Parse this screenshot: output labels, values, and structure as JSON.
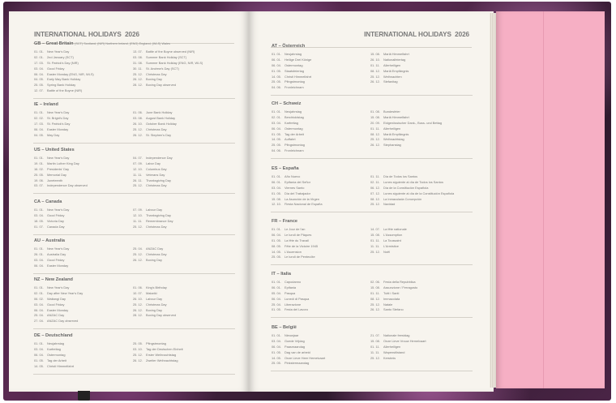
{
  "header": {
    "title": "INTERNATIONAL HOLIDAYS",
    "year": "2026"
  },
  "left_page": [
    {
      "code": "GB",
      "name": "Great Britain",
      "note": "(SCT) Scotland, (NIR) Northern Ireland, (ENG) England, (WLS) Wales",
      "col1": [
        [
          "01. 01.",
          "New Year's Day"
        ],
        [
          "02. 01.",
          "2nd January (SCT)"
        ],
        [
          "17. 03.",
          "St. Patrick's Day (NIR)"
        ],
        [
          "03. 04.",
          "Good Friday"
        ],
        [
          "06. 04.",
          "Easter Monday (ENG, NIR, WLS)"
        ],
        [
          "04. 05.",
          "Early May Bank Holiday"
        ],
        [
          "25. 05.",
          "Spring Bank Holiday"
        ],
        [
          "12. 07.",
          "Battle of the Boyne (NIR)"
        ]
      ],
      "col2": [
        [
          "13. 07.",
          "Battle of the Boyne observed (NIR)"
        ],
        [
          "03. 08.",
          "Summer Bank Holiday (SCT)"
        ],
        [
          "31. 08.",
          "Summer Bank Holiday (ENG, NIR, WLS)"
        ],
        [
          "30. 11.",
          "St. Andrew's Day (SCT)"
        ],
        [
          "25. 12.",
          "Christmas Day"
        ],
        [
          "26. 12.",
          "Boxing Day"
        ],
        [
          "28. 12.",
          "Boxing Day observed"
        ]
      ]
    },
    {
      "code": "IE",
      "name": "Ireland",
      "col1": [
        [
          "01. 01.",
          "New Year's Day"
        ],
        [
          "02. 02.",
          "St. Brigid's Day"
        ],
        [
          "17. 03.",
          "St. Patrick's Day"
        ],
        [
          "06. 04.",
          "Easter Monday"
        ],
        [
          "04. 05.",
          "May Day"
        ]
      ],
      "col2": [
        [
          "01. 06.",
          "June Bank Holiday"
        ],
        [
          "03. 08.",
          "August Bank Holiday"
        ],
        [
          "26. 10.",
          "October Bank Holiday"
        ],
        [
          "25. 12.",
          "Christmas Day"
        ],
        [
          "26. 12.",
          "St. Stephen's Day"
        ]
      ]
    },
    {
      "code": "US",
      "name": "United States",
      "col1": [
        [
          "01. 01.",
          "New Year's Day"
        ],
        [
          "19. 01.",
          "Martin Luther King Day"
        ],
        [
          "16. 02.",
          "Presidents' Day"
        ],
        [
          "25. 05.",
          "Memorial Day"
        ],
        [
          "19. 06.",
          "Juneteenth"
        ],
        [
          "03. 07.",
          "Independence Day observed"
        ]
      ],
      "col2": [
        [
          "04. 07.",
          "Independence Day"
        ],
        [
          "07. 09.",
          "Labor Day"
        ],
        [
          "12. 10.",
          "Columbus Day"
        ],
        [
          "11. 11.",
          "Veterans Day"
        ],
        [
          "26. 11.",
          "Thanksgiving Day"
        ],
        [
          "25. 12.",
          "Christmas Day"
        ]
      ]
    },
    {
      "code": "CA",
      "name": "Canada",
      "col1": [
        [
          "01. 01.",
          "New Year's Day"
        ],
        [
          "03. 04.",
          "Good Friday"
        ],
        [
          "18. 05.",
          "Victoria Day"
        ],
        [
          "01. 07.",
          "Canada Day"
        ]
      ],
      "col2": [
        [
          "07. 09.",
          "Labour Day"
        ],
        [
          "12. 10.",
          "Thanksgiving Day"
        ],
        [
          "11. 11.",
          "Remembrance Day"
        ],
        [
          "25. 12.",
          "Christmas Day"
        ]
      ]
    },
    {
      "code": "AU",
      "name": "Australia",
      "col1": [
        [
          "01. 01.",
          "New Year's Day"
        ],
        [
          "26. 01.",
          "Australia Day"
        ],
        [
          "03. 04.",
          "Good Friday"
        ],
        [
          "06. 04.",
          "Easter Monday"
        ]
      ],
      "col2": [
        [
          "25. 04.",
          "ANZAC Day"
        ],
        [
          "25. 12.",
          "Christmas Day"
        ],
        [
          "26. 12.",
          "Boxing Day"
        ]
      ]
    },
    {
      "code": "NZ",
      "name": "New Zealand",
      "col1": [
        [
          "01. 01.",
          "New Year's Day"
        ],
        [
          "02. 01.",
          "Day after New Year's Day"
        ],
        [
          "06. 02.",
          "Waitangi Day"
        ],
        [
          "03. 04.",
          "Good Friday"
        ],
        [
          "06. 04.",
          "Easter Monday"
        ],
        [
          "25. 04.",
          "ANZAC Day"
        ],
        [
          "27. 04.",
          "ANZAC Day observed"
        ]
      ],
      "col2": [
        [
          "01. 06.",
          "King's Birthday"
        ],
        [
          "10. 07.",
          "Matariki"
        ],
        [
          "26. 10.",
          "Labour Day"
        ],
        [
          "25. 12.",
          "Christmas Day"
        ],
        [
          "26. 12.",
          "Boxing Day"
        ],
        [
          "28. 12.",
          "Boxing Day observed"
        ]
      ]
    },
    {
      "code": "DE",
      "name": "Deutschland",
      "col1": [
        [
          "01. 01.",
          "Neujahrstag"
        ],
        [
          "03. 04.",
          "Karfreitag"
        ],
        [
          "06. 04.",
          "Ostermontag"
        ],
        [
          "01. 05.",
          "Tag der Arbeit"
        ],
        [
          "14. 05.",
          "Christi Himmelfahrt"
        ]
      ],
      "col2": [
        [
          "25. 05.",
          "Pfingstmontag"
        ],
        [
          "03. 10.",
          "Tag der Deutschen Einheit"
        ],
        [
          "25. 12.",
          "Erster Weihnachtstag"
        ],
        [
          "26. 12.",
          "Zweiter Weihnachtstag"
        ]
      ]
    }
  ],
  "right_page": [
    {
      "code": "AT",
      "name": "Österreich",
      "col1": [
        [
          "01. 01.",
          "Neujahrstag"
        ],
        [
          "06. 01.",
          "Heilige Drei Könige"
        ],
        [
          "06. 04.",
          "Ostermontag"
        ],
        [
          "01. 05.",
          "Staatsfeiertag"
        ],
        [
          "14. 05.",
          "Christi Himmelfahrt"
        ],
        [
          "25. 05.",
          "Pfingstmontag"
        ],
        [
          "04. 06.",
          "Fronleichnam"
        ]
      ],
      "col2": [
        [
          "15. 08.",
          "Mariä Himmelfahrt"
        ],
        [
          "26. 10.",
          "Nationalfeiertag"
        ],
        [
          "01. 11.",
          "Allerheiligen"
        ],
        [
          "08. 12.",
          "Mariä Empfängnis"
        ],
        [
          "25. 12.",
          "Weihnachten"
        ],
        [
          "26. 12.",
          "Stefanitag"
        ]
      ]
    },
    {
      "code": "CH",
      "name": "Schweiz",
      "col1": [
        [
          "01. 01.",
          "Neujahrstag"
        ],
        [
          "02. 01.",
          "Berchtoldstag"
        ],
        [
          "03. 04.",
          "Karfreitag"
        ],
        [
          "06. 04.",
          "Ostermontag"
        ],
        [
          "01. 05.",
          "Tag der Arbeit"
        ],
        [
          "14. 05.",
          "Auffahrt"
        ],
        [
          "25. 05.",
          "Pfingstmontag"
        ],
        [
          "04. 06.",
          "Fronleichnam"
        ]
      ],
      "col2": [
        [
          "01. 08.",
          "Bundesfeier"
        ],
        [
          "15. 08.",
          "Mariä Himmelfahrt"
        ],
        [
          "20. 09.",
          "Eidgenössischer Dank-, Buss- und Bettag"
        ],
        [
          "01. 11.",
          "Allerheiligen"
        ],
        [
          "08. 12.",
          "Mariä Empfängnis"
        ],
        [
          "25. 12.",
          "Weihnachtstag"
        ],
        [
          "26. 12.",
          "Stephanstag"
        ]
      ]
    },
    {
      "code": "ES",
      "name": "España",
      "col1": [
        [
          "01. 01.",
          "Año Nuevo"
        ],
        [
          "06. 01.",
          "Epifanía del Señor"
        ],
        [
          "03. 04.",
          "Viernes Santo"
        ],
        [
          "01. 05.",
          "Día del Trabajador"
        ],
        [
          "15. 08.",
          "La Asunción de la Virgen"
        ],
        [
          "12. 10.",
          "Fiesta Nacional de España"
        ]
      ],
      "col2": [
        [
          "01. 11.",
          "Día de Todos los Santos"
        ],
        [
          "02. 11.",
          "Lunes siguiente al día de Todos los Santos"
        ],
        [
          "06. 12.",
          "Día de la Constitución Española"
        ],
        [
          "07. 12.",
          "Lunes siguiente al día de la Constitución Española"
        ],
        [
          "08. 12.",
          "La Inmaculada Concepción"
        ],
        [
          "25. 12.",
          "Navidad"
        ]
      ]
    },
    {
      "code": "FR",
      "name": "France",
      "col1": [
        [
          "01. 01.",
          "Le Jour de l'an"
        ],
        [
          "06. 04.",
          "Le lundi de Pâques"
        ],
        [
          "01. 05.",
          "La fête du Travail"
        ],
        [
          "08. 05.",
          "Fête de la Victoire 1945"
        ],
        [
          "14. 05.",
          "L'Ascension"
        ],
        [
          "25. 05.",
          "Le lundi de Pentecôte"
        ]
      ],
      "col2": [
        [
          "14. 07.",
          "La fête nationale"
        ],
        [
          "15. 08.",
          "L'Assomption"
        ],
        [
          "01. 11.",
          "La Toussaint"
        ],
        [
          "11. 11.",
          "L'Armistice"
        ],
        [
          "25. 12.",
          "Noël"
        ]
      ]
    },
    {
      "code": "IT",
      "name": "Italia",
      "col1": [
        [
          "01. 01.",
          "Capodanno"
        ],
        [
          "06. 01.",
          "Epifania"
        ],
        [
          "05. 04.",
          "Pasqua"
        ],
        [
          "06. 04.",
          "Lunedì di Pasqua"
        ],
        [
          "25. 04.",
          "Liberazione"
        ],
        [
          "01. 05.",
          "Festa del Lavoro"
        ]
      ],
      "col2": [
        [
          "02. 06.",
          "Festa della Repubblica"
        ],
        [
          "15. 08.",
          "Assunzione / Ferragosto"
        ],
        [
          "01. 11.",
          "Tutti i Santi"
        ],
        [
          "08. 12.",
          "Immacolata"
        ],
        [
          "25. 12.",
          "Natale"
        ],
        [
          "26. 12.",
          "Santo Stefano"
        ]
      ]
    },
    {
      "code": "BE",
      "name": "België",
      "col1": [
        [
          "01. 01.",
          "Nieuwjaar"
        ],
        [
          "03. 04.",
          "Goede Vrijdag"
        ],
        [
          "06. 04.",
          "Paasmaandag"
        ],
        [
          "01. 05.",
          "Dag van de arbeid"
        ],
        [
          "14. 05.",
          "Onze Lieve Heer Hemelvaart"
        ],
        [
          "25. 05.",
          "Pinkstermaandag"
        ]
      ],
      "col2": [
        [
          "21. 07.",
          "Nationale feestdag"
        ],
        [
          "15. 08.",
          "Onze Lieve Vrouw Hemelvaart"
        ],
        [
          "01. 11.",
          "Allerheiligen"
        ],
        [
          "11. 11.",
          "Wapenstilstand"
        ],
        [
          "25. 12.",
          "Kerstmis"
        ]
      ]
    }
  ]
}
